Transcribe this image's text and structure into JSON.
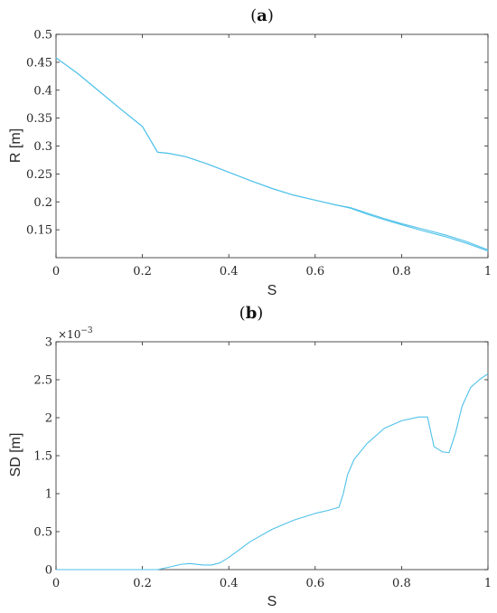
{
  "chart_data": [
    {
      "type": "line",
      "panel_label": "a",
      "xlabel": "S",
      "ylabel": "R [m]",
      "xlim": [
        0,
        1
      ],
      "ylim": [
        0.1,
        0.5
      ],
      "xticks": [
        "0",
        "0.2",
        "0.4",
        "0.6",
        "0.8",
        "1"
      ],
      "xtick_values": [
        0,
        0.2,
        0.4,
        0.6,
        0.8,
        1
      ],
      "yticks": [
        "0.15",
        "0.2",
        "0.25",
        "0.3",
        "0.35",
        "0.4",
        "0.45",
        "0.5"
      ],
      "ytick_values": [
        0.15,
        0.2,
        0.25,
        0.3,
        0.35,
        0.4,
        0.45,
        0.5
      ],
      "color": "#4fc1e9",
      "series": [
        {
          "x": [
            0,
            0.05,
            0.1,
            0.15,
            0.2,
            0.235,
            0.26,
            0.3,
            0.35,
            0.4,
            0.45,
            0.5,
            0.55,
            0.6,
            0.65,
            0.68,
            0.72,
            0.76,
            0.8,
            0.85,
            0.9,
            0.95,
            1.0
          ],
          "y": [
            0.458,
            0.43,
            0.398,
            0.366,
            0.335,
            0.289,
            0.287,
            0.281,
            0.268,
            0.253,
            0.238,
            0.224,
            0.212,
            0.203,
            0.194,
            0.19,
            0.18,
            0.17,
            0.161,
            0.151,
            0.141,
            0.129,
            0.114
          ]
        },
        {
          "x": [
            0,
            0.05,
            0.1,
            0.15,
            0.2,
            0.235,
            0.26,
            0.3,
            0.35,
            0.4,
            0.45,
            0.5,
            0.55,
            0.6,
            0.65,
            0.68,
            0.72,
            0.76,
            0.8,
            0.85,
            0.9,
            0.95,
            1.0
          ],
          "y": [
            0.458,
            0.43,
            0.398,
            0.366,
            0.335,
            0.289,
            0.287,
            0.281,
            0.268,
            0.253,
            0.238,
            0.224,
            0.212,
            0.203,
            0.194,
            0.189,
            0.178,
            0.168,
            0.159,
            0.148,
            0.138,
            0.126,
            0.112
          ]
        }
      ]
    },
    {
      "type": "line",
      "panel_label": "b",
      "xlabel": "S",
      "ylabel": "SD [m]",
      "exponent_label": "×10",
      "exponent_power": "−3",
      "xlim": [
        0,
        1
      ],
      "ylim": [
        0,
        3
      ],
      "xticks": [
        "0",
        "0.2",
        "0.4",
        "0.6",
        "0.8",
        "1"
      ],
      "xtick_values": [
        0,
        0.2,
        0.4,
        0.6,
        0.8,
        1
      ],
      "yticks": [
        "0",
        "0.5",
        "1",
        "1.5",
        "2",
        "2.5",
        "3"
      ],
      "ytick_values": [
        0,
        0.5,
        1,
        1.5,
        2,
        2.5,
        3
      ],
      "color": "#4fc1e9",
      "series": [
        {
          "x": [
            0,
            0.1,
            0.2,
            0.235,
            0.26,
            0.29,
            0.31,
            0.34,
            0.36,
            0.38,
            0.4,
            0.45,
            0.5,
            0.55,
            0.6,
            0.63,
            0.655,
            0.665,
            0.675,
            0.69,
            0.72,
            0.76,
            0.8,
            0.84,
            0.86,
            0.875,
            0.895,
            0.91,
            0.925,
            0.94,
            0.96,
            0.98,
            1.0
          ],
          "y": [
            0,
            0,
            0,
            0,
            0.03,
            0.07,
            0.08,
            0.06,
            0.06,
            0.09,
            0.16,
            0.37,
            0.53,
            0.65,
            0.74,
            0.78,
            0.82,
            1.0,
            1.25,
            1.45,
            1.66,
            1.86,
            1.96,
            2.01,
            2.01,
            1.62,
            1.55,
            1.54,
            1.8,
            2.15,
            2.4,
            2.5,
            2.58
          ]
        }
      ]
    }
  ]
}
